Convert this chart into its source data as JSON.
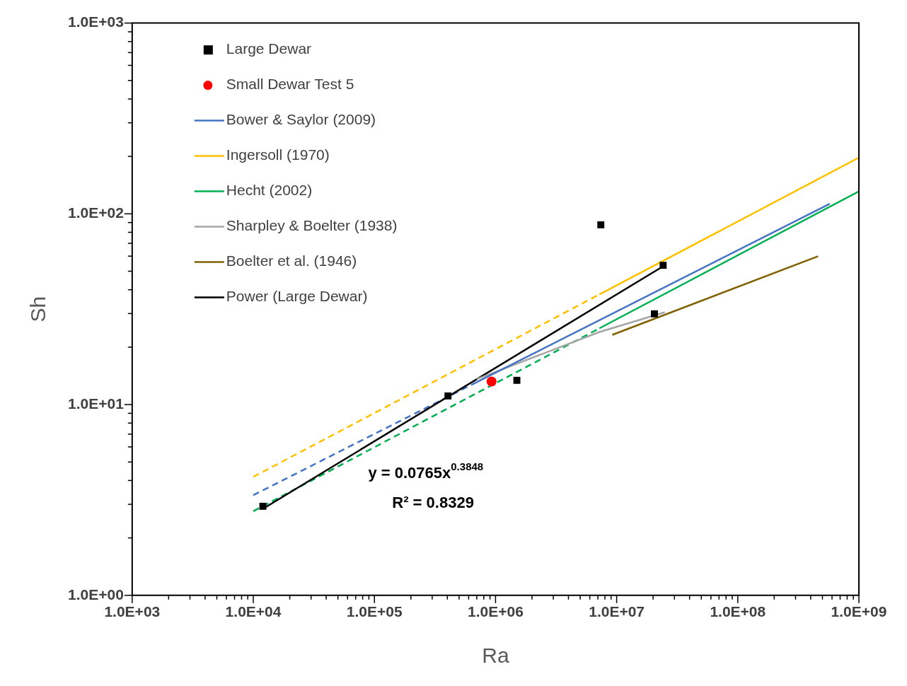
{
  "chart_data": {
    "type": "line",
    "xlabel": "Ra",
    "ylabel": "Sh",
    "log": "xy",
    "grid": false,
    "legend": "top left",
    "xlim": [
      1000,
      1000000000
    ],
    "ylim": [
      1,
      1000
    ],
    "xticks": [
      {
        "value": 1000,
        "label": "1.0E+03"
      },
      {
        "value": 2000,
        "label": null
      },
      {
        "value": 3000,
        "label": null
      },
      {
        "value": 4000,
        "label": null
      },
      {
        "value": 5000,
        "label": null
      },
      {
        "value": 6000,
        "label": null
      },
      {
        "value": 7000,
        "label": null
      },
      {
        "value": 8000,
        "label": null
      },
      {
        "value": 9000,
        "label": null
      },
      {
        "value": 10000,
        "label": "1.0E+04"
      },
      {
        "value": 20000,
        "label": null
      },
      {
        "value": 30000,
        "label": null
      },
      {
        "value": 40000,
        "label": null
      },
      {
        "value": 50000,
        "label": null
      },
      {
        "value": 60000,
        "label": null
      },
      {
        "value": 70000,
        "label": null
      },
      {
        "value": 80000,
        "label": null
      },
      {
        "value": 90000,
        "label": null
      },
      {
        "value": 100000,
        "label": "1.0E+05"
      },
      {
        "value": 200000,
        "label": null
      },
      {
        "value": 300000,
        "label": null
      },
      {
        "value": 400000,
        "label": null
      },
      {
        "value": 500000,
        "label": null
      },
      {
        "value": 600000,
        "label": null
      },
      {
        "value": 700000,
        "label": null
      },
      {
        "value": 800000,
        "label": null
      },
      {
        "value": 900000,
        "label": null
      },
      {
        "value": 1000000,
        "label": "1.0E+06"
      },
      {
        "value": 2000000,
        "label": null
      },
      {
        "value": 3000000,
        "label": null
      },
      {
        "value": 4000000,
        "label": null
      },
      {
        "value": 5000000,
        "label": null
      },
      {
        "value": 6000000,
        "label": null
      },
      {
        "value": 7000000,
        "label": null
      },
      {
        "value": 8000000,
        "label": null
      },
      {
        "value": 9000000,
        "label": null
      },
      {
        "value": 10000000,
        "label": "1.0E+07"
      },
      {
        "value": 20000000,
        "label": null
      },
      {
        "value": 30000000,
        "label": null
      },
      {
        "value": 40000000,
        "label": null
      },
      {
        "value": 50000000,
        "label": null
      },
      {
        "value": 60000000,
        "label": null
      },
      {
        "value": 70000000,
        "label": null
      },
      {
        "value": 80000000,
        "label": null
      },
      {
        "value": 90000000,
        "label": null
      },
      {
        "value": 100000000,
        "label": "1.0E+08"
      },
      {
        "value": 200000000,
        "label": null
      },
      {
        "value": 300000000,
        "label": null
      },
      {
        "value": 400000000,
        "label": null
      },
      {
        "value": 500000000,
        "label": null
      },
      {
        "value": 600000000,
        "label": null
      },
      {
        "value": 700000000,
        "label": null
      },
      {
        "value": 800000000,
        "label": null
      },
      {
        "value": 900000000,
        "label": null
      },
      {
        "value": 1000000000,
        "label": "1.0E+09"
      }
    ],
    "yticks": [
      {
        "value": 1,
        "label": "1.0E+00"
      },
      {
        "value": 2,
        "label": null
      },
      {
        "value": 3,
        "label": null
      },
      {
        "value": 4,
        "label": null
      },
      {
        "value": 5,
        "label": null
      },
      {
        "value": 6,
        "label": null
      },
      {
        "value": 7,
        "label": null
      },
      {
        "value": 8,
        "label": null
      },
      {
        "value": 9,
        "label": null
      },
      {
        "value": 10,
        "label": "1.0E+01"
      },
      {
        "value": 20,
        "label": null
      },
      {
        "value": 30,
        "label": null
      },
      {
        "value": 40,
        "label": null
      },
      {
        "value": 50,
        "label": null
      },
      {
        "value": 60,
        "label": null
      },
      {
        "value": 70,
        "label": null
      },
      {
        "value": 80,
        "label": null
      },
      {
        "value": 90,
        "label": null
      },
      {
        "value": 100,
        "label": "1.0E+02"
      },
      {
        "value": 200,
        "label": null
      },
      {
        "value": 300,
        "label": null
      },
      {
        "value": 400,
        "label": null
      },
      {
        "value": 500,
        "label": null
      },
      {
        "value": 600,
        "label": null
      },
      {
        "value": 700,
        "label": null
      },
      {
        "value": 800,
        "label": null
      },
      {
        "value": 900,
        "label": null
      },
      {
        "value": 1000,
        "label": "1.0E+03"
      }
    ],
    "series": [
      {
        "name": "Large Dewar",
        "type": "scatter",
        "marker": "square",
        "color": "#000000",
        "x": [
          12000,
          405000,
          1500000,
          7400000,
          20500000,
          24200000
        ],
        "values": [
          2.93,
          11.1,
          13.4,
          87.6,
          29.9,
          53.7
        ]
      },
      {
        "name": "Small Dewar Test 5",
        "type": "scatter",
        "marker": "circle",
        "color": "#ff0000",
        "x": [
          927000
        ],
        "values": [
          13.2
        ]
      },
      {
        "name": "Bower & Saylor (2009)",
        "type": "line",
        "marker": "none",
        "line_style": "solid",
        "color": "#4472c4",
        "x": [
          700000,
          575000000
        ],
        "values": [
          13.1,
          113
        ]
      },
      {
        "name": "Ingersoll (1970)",
        "type": "line",
        "marker": "none",
        "line_style": "solid",
        "color": "#ffc000",
        "x": [
          7200000,
          1000000000
        ],
        "values": [
          37.8,
          197
        ]
      },
      {
        "name": "Hecht (2002)",
        "type": "line",
        "marker": "none",
        "line_style": "solid",
        "color": "#00b050",
        "x": [
          7200000,
          1000000000
        ],
        "values": [
          25.1,
          131
        ]
      },
      {
        "name": "Sharpley & Boelter (1938)",
        "type": "line",
        "marker": "none",
        "line_style": "solid",
        "color": "#a5a5a5",
        "x": [
          700000,
          7200000,
          25000000
        ],
        "values": [
          13.6,
          24,
          30.5
        ]
      },
      {
        "name": "Boelter et al. (1946)",
        "type": "line",
        "marker": "none",
        "line_style": "solid",
        "color": "#806000",
        "x": [
          9200000,
          460000000
        ],
        "values": [
          23.2,
          59.9
        ]
      },
      {
        "name": "Power (Large Dewar)",
        "type": "line",
        "marker": "none",
        "line_style": "solid",
        "color": "#000000",
        "x": [
          12000,
          24200000
        ],
        "values": [
          2.84,
          53.1
        ]
      },
      {
        "type": "line",
        "marker": "none",
        "line_style": "dashed",
        "color": "#4472c4",
        "x": [
          10000,
          700000
        ],
        "values": [
          3.35,
          13.1
        ]
      },
      {
        "type": "line",
        "marker": "none",
        "line_style": "dashed",
        "color": "#ffc000",
        "x": [
          10000,
          7200000
        ],
        "values": [
          4.18,
          37.8
        ]
      },
      {
        "type": "line",
        "marker": "none",
        "line_style": "dashed",
        "color": "#00b050",
        "x": [
          10000,
          7200000
        ],
        "values": [
          2.76,
          25.1
        ]
      }
    ],
    "annotations": [
      "y = 0.0765x$^{0.3848}$",
      "R² = 0.8329"
    ]
  }
}
